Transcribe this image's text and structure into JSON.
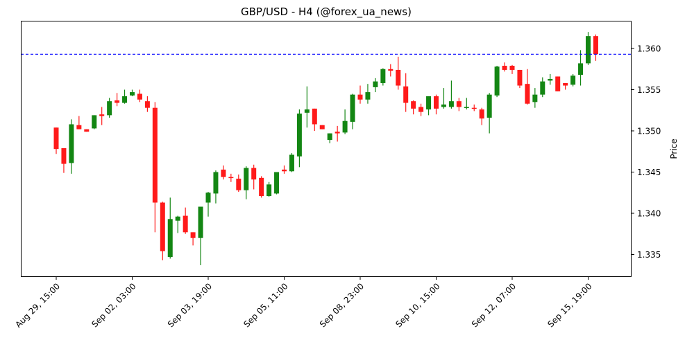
{
  "chart_data": {
    "type": "candlestick",
    "title": "GBP/USD - H4 (@forex_ua_news)",
    "xlabel": "",
    "ylabel": "Price",
    "ylim": [
      1.3322,
      1.3633
    ],
    "grid": false,
    "legend": null,
    "y_axis_side": "right",
    "y_ticks": [
      1.335,
      1.34,
      1.345,
      1.35,
      1.355,
      1.36
    ],
    "y_tick_labels": [
      "1.335",
      "1.340",
      "1.345",
      "1.350",
      "1.355",
      "1.360"
    ],
    "x_ticks": [
      {
        "index": 0,
        "label": "Aug 29, 15:00"
      },
      {
        "index": 10,
        "label": "Sep 02, 03:00"
      },
      {
        "index": 20,
        "label": "Sep 03, 19:00"
      },
      {
        "index": 30,
        "label": "Sep 05, 11:00"
      },
      {
        "index": 40,
        "label": "Sep 08, 23:00"
      },
      {
        "index": 50,
        "label": "Sep 10, 15:00"
      },
      {
        "index": 60,
        "label": "Sep 12, 07:00"
      },
      {
        "index": 70,
        "label": "Sep 15, 19:00"
      }
    ],
    "hline": {
      "value": 1.3593,
      "color": "#0000ff",
      "style": "dashed"
    },
    "colors": {
      "up": "#138613",
      "down": "#ff1a1a"
    },
    "candles": [
      [
        1.3504,
        1.3504,
        1.3472,
        1.3478
      ],
      [
        1.3479,
        1.3479,
        1.3449,
        1.346
      ],
      [
        1.3461,
        1.3514,
        1.3448,
        1.3508
      ],
      [
        1.3507,
        1.3518,
        1.3502,
        1.3502
      ],
      [
        1.3502,
        1.3502,
        1.3499,
        1.3499
      ],
      [
        1.3503,
        1.3519,
        1.3502,
        1.3519
      ],
      [
        1.352,
        1.3529,
        1.3507,
        1.3518
      ],
      [
        1.3519,
        1.354,
        1.3516,
        1.3536
      ],
      [
        1.3537,
        1.3546,
        1.353,
        1.3534
      ],
      [
        1.3534,
        1.355,
        1.3533,
        1.3542
      ],
      [
        1.3543,
        1.355,
        1.3542,
        1.3547
      ],
      [
        1.3545,
        1.355,
        1.3535,
        1.3538
      ],
      [
        1.3536,
        1.3542,
        1.3523,
        1.3528
      ],
      [
        1.3528,
        1.3535,
        1.3377,
        1.3413
      ],
      [
        1.3413,
        1.3414,
        1.3343,
        1.3354
      ],
      [
        1.3347,
        1.3419,
        1.3345,
        1.3393
      ],
      [
        1.3391,
        1.3397,
        1.3376,
        1.3396
      ],
      [
        1.3397,
        1.3407,
        1.3375,
        1.3377
      ],
      [
        1.3377,
        1.3377,
        1.3361,
        1.337
      ],
      [
        1.337,
        1.3408,
        1.3337,
        1.3408
      ],
      [
        1.3413,
        1.3426,
        1.3396,
        1.3425
      ],
      [
        1.3424,
        1.3452,
        1.3412,
        1.345
      ],
      [
        1.3453,
        1.3458,
        1.3441,
        1.3444
      ],
      [
        1.3444,
        1.3448,
        1.3438,
        1.3443
      ],
      [
        1.3442,
        1.3447,
        1.3426,
        1.3428
      ],
      [
        1.3428,
        1.3457,
        1.3417,
        1.3455
      ],
      [
        1.3455,
        1.3459,
        1.3429,
        1.3441
      ],
      [
        1.3443,
        1.3445,
        1.3419,
        1.3421
      ],
      [
        1.3421,
        1.3438,
        1.342,
        1.3435
      ],
      [
        1.3424,
        1.345,
        1.3423,
        1.345
      ],
      [
        1.3453,
        1.3458,
        1.3448,
        1.3451
      ],
      [
        1.3451,
        1.3473,
        1.345,
        1.3471
      ],
      [
        1.3469,
        1.3526,
        1.3456,
        1.3521
      ],
      [
        1.3522,
        1.3554,
        1.3504,
        1.3526
      ],
      [
        1.3527,
        1.3527,
        1.35,
        1.3508
      ],
      [
        1.3507,
        1.3507,
        1.3502,
        1.3502
      ],
      [
        1.3489,
        1.3497,
        1.3485,
        1.3497
      ],
      [
        1.3499,
        1.3506,
        1.3487,
        1.3497
      ],
      [
        1.3498,
        1.3526,
        1.3496,
        1.3512
      ],
      [
        1.3511,
        1.3545,
        1.3502,
        1.3544
      ],
      [
        1.3544,
        1.3555,
        1.3533,
        1.3538
      ],
      [
        1.3538,
        1.3557,
        1.3533,
        1.3547
      ],
      [
        1.3553,
        1.3564,
        1.3547,
        1.356
      ],
      [
        1.3558,
        1.3576,
        1.3555,
        1.3575
      ],
      [
        1.3575,
        1.3581,
        1.3566,
        1.3573
      ],
      [
        1.3574,
        1.359,
        1.355,
        1.3555
      ],
      [
        1.3554,
        1.357,
        1.3523,
        1.3534
      ],
      [
        1.3536,
        1.3537,
        1.352,
        1.3527
      ],
      [
        1.3529,
        1.3533,
        1.3518,
        1.3523
      ],
      [
        1.3526,
        1.3542,
        1.3519,
        1.3542
      ],
      [
        1.3542,
        1.3544,
        1.352,
        1.3527
      ],
      [
        1.3529,
        1.3552,
        1.3527,
        1.3532
      ],
      [
        1.3529,
        1.3561,
        1.3527,
        1.3536
      ],
      [
        1.3536,
        1.354,
        1.3524,
        1.3529
      ],
      [
        1.3528,
        1.354,
        1.3526,
        1.3529
      ],
      [
        1.3528,
        1.3532,
        1.3524,
        1.3527
      ],
      [
        1.3526,
        1.3528,
        1.3507,
        1.3515
      ],
      [
        1.3516,
        1.3546,
        1.3497,
        1.3544
      ],
      [
        1.3543,
        1.3579,
        1.3541,
        1.3578
      ],
      [
        1.3579,
        1.3583,
        1.3572,
        1.3574
      ],
      [
        1.3579,
        1.358,
        1.3569,
        1.3574
      ],
      [
        1.3574,
        1.3574,
        1.3552,
        1.3555
      ],
      [
        1.3557,
        1.3575,
        1.3532,
        1.3533
      ],
      [
        1.3535,
        1.3552,
        1.3528,
        1.3544
      ],
      [
        1.3544,
        1.3565,
        1.3541,
        1.356
      ],
      [
        1.3561,
        1.3569,
        1.3556,
        1.3563
      ],
      [
        1.3566,
        1.3566,
        1.3548,
        1.3548
      ],
      [
        1.3558,
        1.3558,
        1.355,
        1.3555
      ],
      [
        1.3556,
        1.3569,
        1.3554,
        1.3567
      ],
      [
        1.3568,
        1.3598,
        1.3555,
        1.3582
      ],
      [
        1.3582,
        1.362,
        1.358,
        1.3615
      ],
      [
        1.3615,
        1.3617,
        1.3585,
        1.3593
      ]
    ],
    "candle_fields": [
      "open",
      "high",
      "low",
      "close"
    ]
  }
}
